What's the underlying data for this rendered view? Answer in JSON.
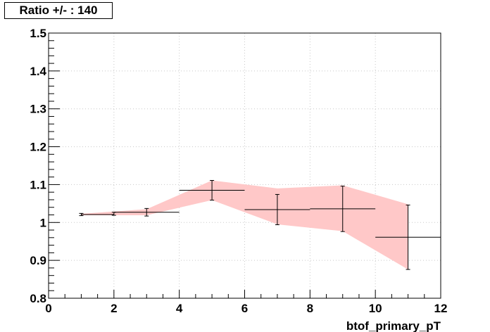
{
  "title": "Ratio +/- : 140",
  "colors": {
    "band": "#ffc8c8",
    "grid": "#c8c8c8",
    "axis": "#000000",
    "points": "#000000"
  },
  "chart_data": {
    "type": "scatter",
    "title": "Ratio +/- : 140",
    "xlabel": "btof_primary_pT",
    "ylabel": "",
    "xlim": [
      0,
      12
    ],
    "ylim": [
      0.8,
      1.5
    ],
    "x_ticks": [
      0,
      2,
      4,
      6,
      8,
      10,
      12
    ],
    "y_ticks": [
      0.8,
      0.9,
      1.0,
      1.1,
      1.2,
      1.3,
      1.4,
      1.5
    ],
    "x_tick_labels": [
      "0",
      "2",
      "4",
      "6",
      "8",
      "10",
      "12"
    ],
    "y_tick_labels": [
      "0.8",
      "0.9",
      "1",
      "1.1",
      "1.2",
      "1.3",
      "1.4",
      "1.5"
    ],
    "grid": true,
    "points": [
      {
        "x": 1,
        "y": 1.021,
        "xerr_low": 0,
        "xerr_high": 1,
        "yerr": 0.003
      },
      {
        "x": 2,
        "y": 1.023,
        "xerr_low": 0,
        "xerr_high": 0,
        "yerr": 0.004
      },
      {
        "x": 3,
        "y": 1.027,
        "xerr_low": 1,
        "xerr_high": 1,
        "yerr": 0.01
      },
      {
        "x": 5,
        "y": 1.085,
        "xerr_low": 1,
        "xerr_high": 1,
        "yerr": 0.026
      },
      {
        "x": 7,
        "y": 1.034,
        "xerr_low": 1,
        "xerr_high": 1,
        "yerr": 0.04
      },
      {
        "x": 9,
        "y": 1.036,
        "xerr_low": 1,
        "xerr_high": 1,
        "yerr": 0.06
      },
      {
        "x": 11,
        "y": 0.961,
        "xerr_low": 1,
        "xerr_high": 1,
        "yerr": 0.085
      }
    ],
    "band": {
      "x": [
        1,
        3,
        5,
        7,
        9,
        11
      ],
      "upper": [
        1.023,
        1.035,
        1.111,
        1.09,
        1.098,
        1.048
      ],
      "lower": [
        1.019,
        1.019,
        1.059,
        0.995,
        0.977,
        0.876
      ]
    }
  }
}
